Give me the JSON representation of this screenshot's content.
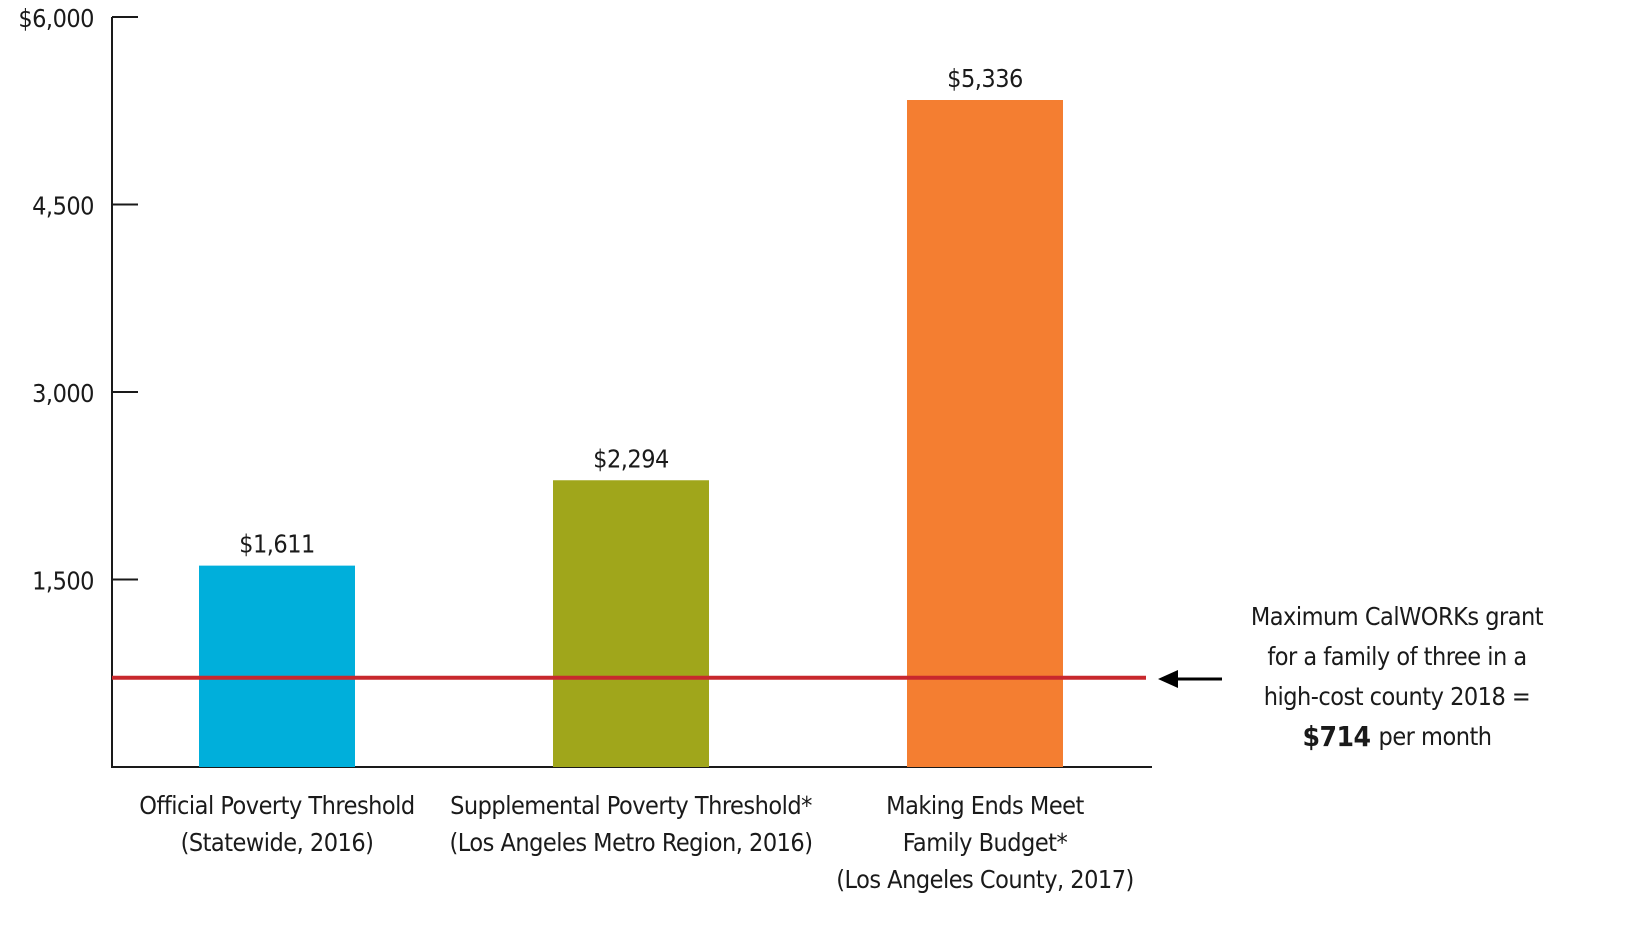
{
  "chart_data": {
    "type": "bar",
    "categories": [
      [
        "Official Poverty Threshold",
        "(Statewide, 2016)"
      ],
      [
        "Supplemental Poverty Threshold*",
        "(Los Angeles Metro Region, 2016)"
      ],
      [
        "Making Ends Meet",
        "Family Budget*",
        "(Los Angeles County, 2017)"
      ]
    ],
    "values": [
      1611,
      2294,
      5336
    ],
    "value_labels": [
      "$1,611",
      "$2,294",
      "$5,336"
    ],
    "colors": [
      "#00afdb",
      "#a0a61b",
      "#f47e31"
    ],
    "ylim": [
      0,
      6000
    ],
    "yticks": [
      {
        "value": 1500,
        "label": "1,500"
      },
      {
        "value": 3000,
        "label": "3,000"
      },
      {
        "value": 4500,
        "label": "4,500"
      },
      {
        "value": 6000,
        "label": "$6,000"
      }
    ],
    "reference_line": {
      "value": 714,
      "color": "#c8282d",
      "annotation": [
        "Maximum CalWORKs grant",
        "for a family of three in a",
        "high-cost county 2018 =",
        "$714",
        "per month"
      ]
    }
  }
}
